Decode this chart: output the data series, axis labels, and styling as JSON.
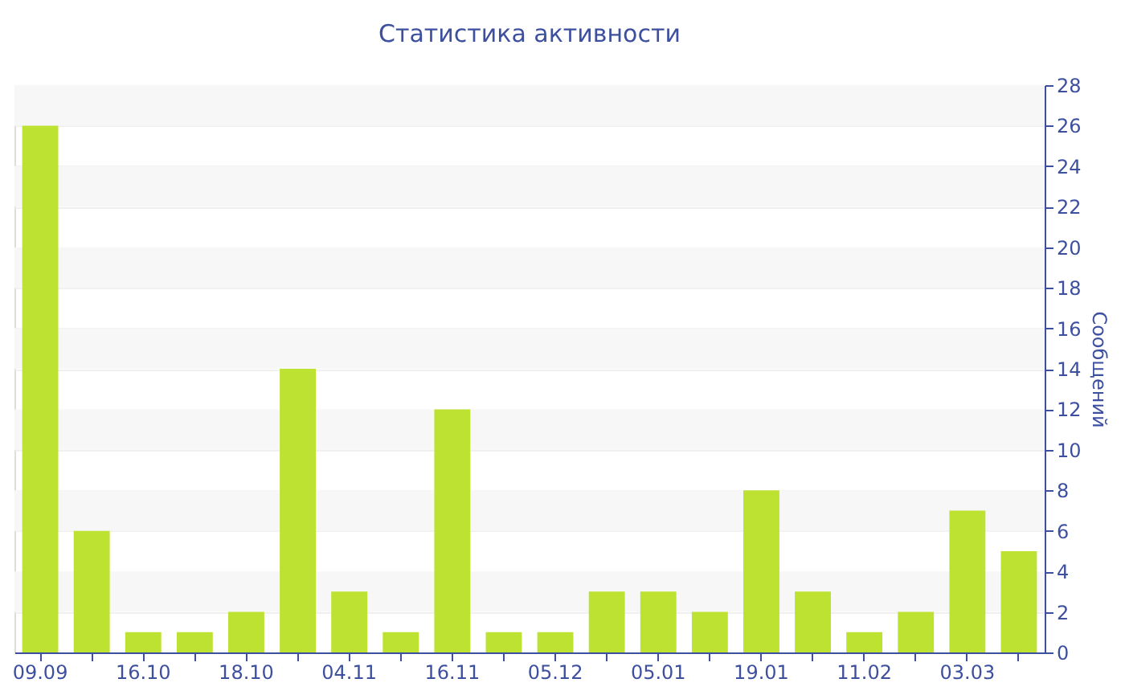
{
  "chart_data": {
    "type": "bar",
    "title": "Статистика активности",
    "ylabel": "Сообщений",
    "categories": [
      "09.09",
      null,
      "16.10",
      null,
      "18.10",
      null,
      "04.11",
      null,
      "16.11",
      null,
      "05.12",
      null,
      "05.01",
      null,
      "19.01",
      null,
      "11.02",
      null,
      "03.03",
      null
    ],
    "series": [
      {
        "color": "#bde231",
        "values": [
          26,
          6,
          1,
          1,
          2,
          14,
          3,
          1,
          12,
          1,
          1,
          3,
          3,
          2,
          8,
          3,
          1,
          2,
          7,
          5
        ]
      }
    ],
    "ylim": [
      0,
      28
    ],
    "yticks": [
      0,
      2,
      4,
      6,
      8,
      10,
      12,
      14,
      16,
      18,
      20,
      22,
      24,
      26,
      28
    ],
    "grid": "y"
  }
}
